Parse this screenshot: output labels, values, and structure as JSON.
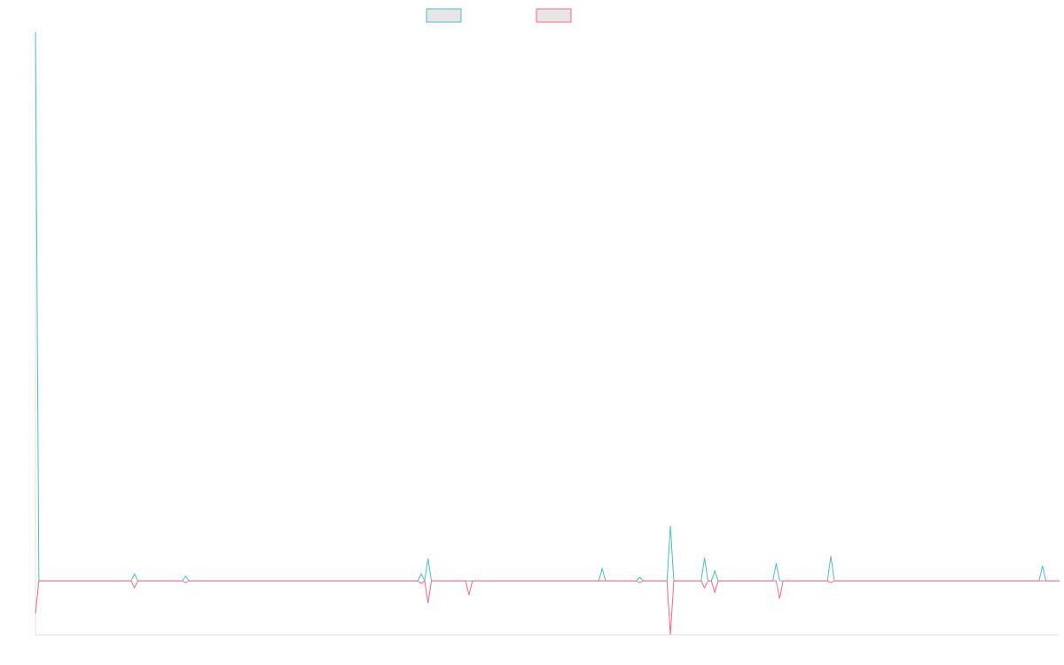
{
  "chart_data": {
    "type": "line",
    "title": "",
    "xlabel": "",
    "ylabel": "",
    "grid": false,
    "legend": "top-center",
    "ylim": [
      -61,
      620
    ],
    "xlim": [
      0,
      300
    ],
    "series": [
      {
        "name": "",
        "color": "#4bc0c0",
        "points": [
          [
            0,
            620
          ],
          [
            1,
            0
          ],
          [
            28,
            0
          ],
          [
            29,
            8
          ],
          [
            30,
            0
          ],
          [
            43,
            0
          ],
          [
            44,
            5
          ],
          [
            45,
            0
          ],
          [
            112,
            0
          ],
          [
            113,
            8
          ],
          [
            114,
            0
          ],
          [
            115,
            25
          ],
          [
            116,
            0
          ],
          [
            165,
            0
          ],
          [
            166,
            14
          ],
          [
            167,
            0
          ],
          [
            176,
            0
          ],
          [
            177,
            4
          ],
          [
            178,
            0
          ],
          [
            185,
            0
          ],
          [
            186,
            62
          ],
          [
            187,
            0
          ],
          [
            195,
            0
          ],
          [
            196,
            26
          ],
          [
            197,
            0
          ],
          [
            198,
            0
          ],
          [
            199,
            11
          ],
          [
            200,
            0
          ],
          [
            216,
            0
          ],
          [
            217,
            20
          ],
          [
            218,
            0
          ],
          [
            232,
            0
          ],
          [
            233,
            28
          ],
          [
            234,
            0
          ],
          [
            294,
            0
          ],
          [
            295,
            17
          ],
          [
            296,
            0
          ],
          [
            300,
            0
          ]
        ]
      },
      {
        "name": "",
        "color": "#ff6384",
        "points": [
          [
            0,
            -37
          ],
          [
            1,
            0
          ],
          [
            28,
            0
          ],
          [
            29,
            -8
          ],
          [
            30,
            0
          ],
          [
            43,
            0
          ],
          [
            44,
            -2
          ],
          [
            45,
            0
          ],
          [
            112,
            0
          ],
          [
            113,
            -3
          ],
          [
            114,
            0
          ],
          [
            115,
            -25
          ],
          [
            116,
            0
          ],
          [
            126,
            0
          ],
          [
            127,
            -16
          ],
          [
            128,
            0
          ],
          [
            176,
            0
          ],
          [
            177,
            -2
          ],
          [
            178,
            0
          ],
          [
            185,
            0
          ],
          [
            186,
            -61
          ],
          [
            187,
            0
          ],
          [
            195,
            0
          ],
          [
            196,
            -8
          ],
          [
            197,
            0
          ],
          [
            198,
            0
          ],
          [
            199,
            -13
          ],
          [
            200,
            0
          ],
          [
            217,
            0
          ],
          [
            218,
            -20
          ],
          [
            219,
            0
          ],
          [
            232,
            0
          ],
          [
            233,
            -2
          ],
          [
            234,
            0
          ],
          [
            300,
            0
          ]
        ]
      }
    ]
  }
}
